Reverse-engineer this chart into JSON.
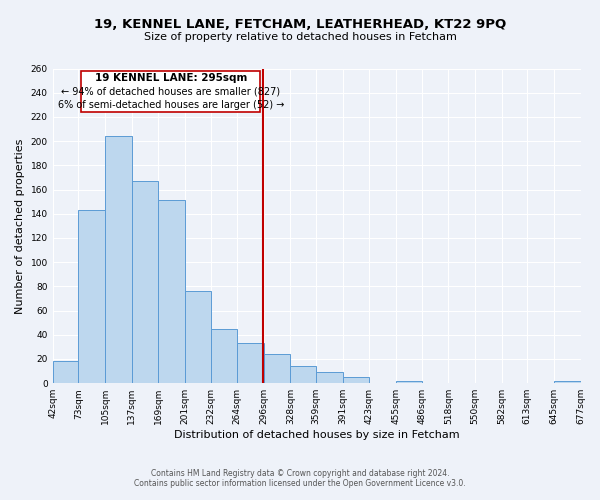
{
  "title": "19, KENNEL LANE, FETCHAM, LEATHERHEAD, KT22 9PQ",
  "subtitle": "Size of property relative to detached houses in Fetcham",
  "xlabel": "Distribution of detached houses by size in Fetcham",
  "ylabel": "Number of detached properties",
  "bar_color": "#bdd7ee",
  "bar_edge_color": "#5b9bd5",
  "background_color": "#eef2f9",
  "grid_color": "#ffffff",
  "bin_edges": [
    42,
    73,
    105,
    137,
    169,
    201,
    232,
    264,
    296,
    328,
    359,
    391,
    423,
    455,
    486,
    518,
    550,
    582,
    613,
    645,
    677
  ],
  "bin_labels": [
    "42sqm",
    "73sqm",
    "105sqm",
    "137sqm",
    "169sqm",
    "201sqm",
    "232sqm",
    "264sqm",
    "296sqm",
    "328sqm",
    "359sqm",
    "391sqm",
    "423sqm",
    "455sqm",
    "486sqm",
    "518sqm",
    "550sqm",
    "582sqm",
    "613sqm",
    "645sqm",
    "677sqm"
  ],
  "counts": [
    18,
    143,
    204,
    167,
    151,
    76,
    45,
    33,
    24,
    14,
    9,
    5,
    0,
    2,
    0,
    0,
    0,
    0,
    0,
    2
  ],
  "property_value": 295,
  "annotation_title": "19 KENNEL LANE: 295sqm",
  "annotation_line1": "← 94% of detached houses are smaller (827)",
  "annotation_line2": "6% of semi-detached houses are larger (52) →",
  "vline_color": "#c00000",
  "annotation_box_edge": "#c00000",
  "ylim": [
    0,
    260
  ],
  "yticks": [
    0,
    20,
    40,
    60,
    80,
    100,
    120,
    140,
    160,
    180,
    200,
    220,
    240,
    260
  ],
  "footer_line1": "Contains HM Land Registry data © Crown copyright and database right 2024.",
  "footer_line2": "Contains public sector information licensed under the Open Government Licence v3.0."
}
